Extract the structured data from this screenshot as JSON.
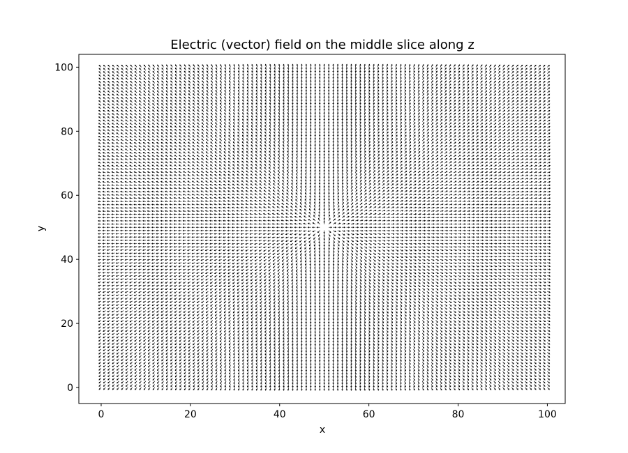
{
  "chart_data": {
    "type": "quiver",
    "title": "Electric (vector) field on the middle slice along z",
    "xlabel": "x",
    "ylabel": "y",
    "xlim": [
      -5,
      104
    ],
    "ylim": [
      -5,
      104
    ],
    "x_ticks": [
      0,
      20,
      40,
      60,
      80,
      100
    ],
    "y_ticks": [
      0,
      20,
      40,
      60,
      80,
      100
    ],
    "x_tick_labels": [
      "0",
      "20",
      "40",
      "60",
      "80",
      "100"
    ],
    "y_tick_labels": [
      "0",
      "20",
      "40",
      "60",
      "80",
      "100"
    ],
    "grid": false,
    "field": {
      "grid_x_range": [
        0,
        100
      ],
      "grid_y_range": [
        0,
        100
      ],
      "grid_step": 1,
      "source_point": [
        50,
        50
      ],
      "direction": "radial, pointing away from center",
      "magnitude": "uniform"
    },
    "arrow_color": "#000000"
  }
}
